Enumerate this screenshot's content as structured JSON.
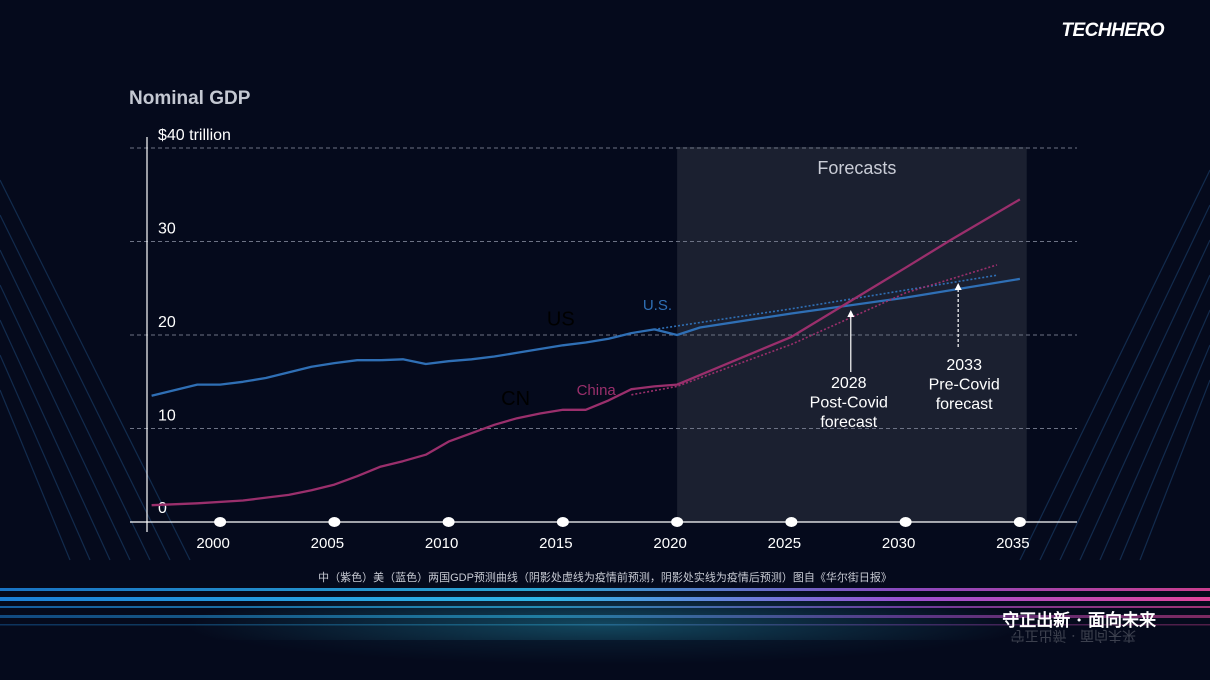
{
  "brand": {
    "logo_text": "TECHHERO"
  },
  "caption": "中（紫色）美（蓝色）两国GDP预测曲线（阴影处虚线为疫情前预测，阴影处实线为疫情后预测）图自《华尔街日报》",
  "slogan": "守正出新 · 面向未来",
  "colors": {
    "background": "#050a1c",
    "us": "#2f6fb5",
    "china": "#9a2f6c",
    "forecast_band": "#1e2233",
    "axis": "#ffffff"
  },
  "chart_data": {
    "type": "line",
    "title": "Nominal GDP",
    "ylabel": "",
    "xlabel": "",
    "xlim": [
      1996.8,
      2037.5
    ],
    "ylim": [
      0,
      40
    ],
    "xticks": [
      2000,
      2005,
      2010,
      2015,
      2020,
      2025,
      2030,
      2035
    ],
    "yticks": [
      {
        "value": 0,
        "label": "0"
      },
      {
        "value": 10,
        "label": "10"
      },
      {
        "value": 20,
        "label": "20"
      },
      {
        "value": 30,
        "label": "30"
      },
      {
        "value": 40,
        "label": "$40 trillion"
      }
    ],
    "grid": "horizontal dashed",
    "forecast_region": {
      "start": 2020,
      "end": 2035.3,
      "label": "Forecasts"
    },
    "series": [
      {
        "name": "U.S.",
        "style": "solid",
        "color": "#2f6fb5",
        "points": [
          [
            1997,
            13.5
          ],
          [
            1999,
            14.7
          ],
          [
            2000,
            14.7
          ],
          [
            2001,
            15.0
          ],
          [
            2002,
            15.4
          ],
          [
            2003,
            16.0
          ],
          [
            2004,
            16.6
          ],
          [
            2005,
            17.0
          ],
          [
            2006,
            17.3
          ],
          [
            2007,
            17.3
          ],
          [
            2008,
            17.4
          ],
          [
            2009,
            16.9
          ],
          [
            2010,
            17.2
          ],
          [
            2011,
            17.4
          ],
          [
            2012,
            17.7
          ],
          [
            2013,
            18.1
          ],
          [
            2014,
            18.5
          ],
          [
            2015,
            18.9
          ],
          [
            2016,
            19.2
          ],
          [
            2017,
            19.6
          ],
          [
            2018,
            20.2
          ],
          [
            2019,
            20.6
          ],
          [
            2020,
            20.0
          ],
          [
            2021,
            20.8
          ],
          [
            2025,
            22.3
          ],
          [
            2030,
            24.0
          ],
          [
            2035,
            26.0
          ]
        ]
      },
      {
        "name": "U.S. pre-Covid forecast",
        "style": "dotted",
        "color": "#2f6fb5",
        "points": [
          [
            2019,
            20.6
          ],
          [
            2025,
            22.8
          ],
          [
            2030,
            24.8
          ],
          [
            2034,
            26.4
          ]
        ]
      },
      {
        "name": "China",
        "style": "solid",
        "color": "#9a2f6c",
        "points": [
          [
            1997,
            1.8
          ],
          [
            1999,
            2.0
          ],
          [
            2001,
            2.3
          ],
          [
            2003,
            2.9
          ],
          [
            2004,
            3.4
          ],
          [
            2005,
            4.0
          ],
          [
            2006,
            4.9
          ],
          [
            2007,
            5.9
          ],
          [
            2008,
            6.5
          ],
          [
            2009,
            7.2
          ],
          [
            2010,
            8.6
          ],
          [
            2011,
            9.5
          ],
          [
            2012,
            10.4
          ],
          [
            2013,
            11.1
          ],
          [
            2014,
            11.6
          ],
          [
            2015,
            12.0
          ],
          [
            2016,
            12.0
          ],
          [
            2017,
            13.0
          ],
          [
            2018,
            14.2
          ],
          [
            2019,
            14.5
          ],
          [
            2020,
            14.7
          ],
          [
            2025,
            19.8
          ],
          [
            2030,
            27.2
          ],
          [
            2032,
            30.2
          ],
          [
            2035,
            34.5
          ]
        ]
      },
      {
        "name": "China pre-Covid forecast",
        "style": "dotted",
        "color": "#9a2f6c",
        "points": [
          [
            2018,
            13.6
          ],
          [
            2020,
            14.5
          ],
          [
            2025,
            19.0
          ],
          [
            2030,
            24.5
          ],
          [
            2034,
            27.5
          ]
        ]
      }
    ],
    "series_labels": [
      {
        "text": "U.S.",
        "x": 2018.5,
        "y": 22.7,
        "color": "#2f6fb5"
      },
      {
        "text": "China",
        "x": 2015.6,
        "y": 13.6,
        "color": "#9a2f6c"
      }
    ],
    "ghost_labels": [
      {
        "text": "US",
        "x": 2014.3,
        "y": 21.0
      },
      {
        "text": "CN",
        "x": 2012.3,
        "y": 12.5
      }
    ],
    "annotations": [
      {
        "lines": [
          "2028",
          "Post-Covid",
          "forecast"
        ],
        "x": 2027.6,
        "y": 22.7
      },
      {
        "lines": [
          "2033",
          "Pre-Covid",
          "forecast"
        ],
        "x": 2032.3,
        "y": 25.2
      }
    ]
  }
}
